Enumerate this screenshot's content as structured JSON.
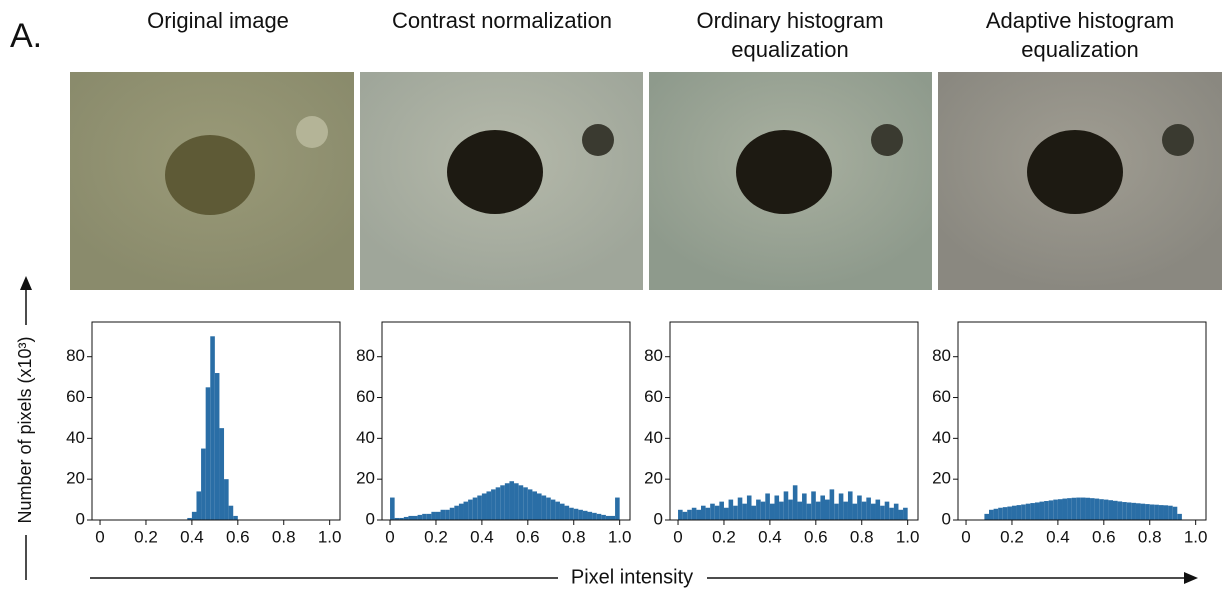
{
  "figure_label": "A.",
  "y_label": "Number of pixels (x10³)",
  "x_label": "Pixel intensity",
  "chart_data": [
    {
      "type": "histogram",
      "title": "Original image",
      "color": "#2a6ea6",
      "bins": [
        0,
        0.02,
        0.04,
        0.06,
        0.08,
        0.1,
        0.12,
        0.14,
        0.16,
        0.18,
        0.2,
        0.22,
        0.24,
        0.26,
        0.28,
        0.3,
        0.32,
        0.34,
        0.36,
        0.38,
        0.4,
        0.42,
        0.44,
        0.46,
        0.48,
        0.5,
        0.52,
        0.54,
        0.56,
        0.58,
        0.6,
        0.62,
        0.64,
        0.66,
        0.68,
        0.7,
        0.72,
        0.74,
        0.76,
        0.78,
        0.8,
        0.82,
        0.84,
        0.86,
        0.88,
        0.9,
        0.92,
        0.94,
        0.96,
        0.98,
        1
      ],
      "values": [
        0,
        0,
        0,
        0,
        0,
        0,
        0,
        0,
        0,
        0,
        0,
        0,
        0,
        0,
        0,
        0,
        0,
        0,
        0,
        1,
        4,
        14,
        35,
        65,
        90,
        72,
        45,
        20,
        7,
        2,
        0,
        0,
        0,
        0,
        0,
        0,
        0,
        0,
        0,
        0,
        0,
        0,
        0,
        0,
        0,
        0,
        0,
        0,
        0,
        0
      ],
      "xlim": [
        -0.035,
        1.045
      ],
      "xticks": [
        0,
        0.2,
        0.4,
        0.6,
        0.8,
        {
          "value": 1,
          "label": "1.0"
        }
      ],
      "ylim": [
        0,
        97
      ],
      "yticks": [
        0,
        20,
        40,
        60,
        80
      ]
    },
    {
      "type": "histogram",
      "title": "Contrast normalization",
      "color": "#2a6ea6",
      "bins": [
        0,
        0.02,
        0.04,
        0.06,
        0.08,
        0.1,
        0.12,
        0.14,
        0.16,
        0.18,
        0.2,
        0.22,
        0.24,
        0.26,
        0.28,
        0.3,
        0.32,
        0.34,
        0.36,
        0.38,
        0.4,
        0.42,
        0.44,
        0.46,
        0.48,
        0.5,
        0.52,
        0.54,
        0.56,
        0.58,
        0.6,
        0.62,
        0.64,
        0.66,
        0.68,
        0.7,
        0.72,
        0.74,
        0.76,
        0.78,
        0.8,
        0.82,
        0.84,
        0.86,
        0.88,
        0.9,
        0.92,
        0.94,
        0.96,
        0.98,
        1
      ],
      "values": [
        11,
        1,
        1,
        1.5,
        2,
        2,
        2.5,
        3,
        3,
        4,
        4,
        5,
        5,
        6,
        7,
        8,
        9,
        10,
        11,
        12,
        13,
        14,
        15,
        16,
        17,
        18,
        19,
        18,
        17,
        16,
        15,
        14,
        13,
        12,
        11,
        10,
        9,
        8,
        7,
        6,
        5.5,
        5,
        4.5,
        4,
        3.5,
        3,
        2.5,
        2,
        2,
        11
      ],
      "xlim": [
        -0.035,
        1.045
      ],
      "xticks": [
        0,
        0.2,
        0.4,
        0.6,
        0.8,
        {
          "value": 1,
          "label": "1.0"
        }
      ],
      "ylim": [
        0,
        97
      ],
      "yticks": [
        0,
        20,
        40,
        60,
        80
      ]
    },
    {
      "type": "histogram",
      "title": "Ordinary histogram equalization",
      "color": "#2a6ea6",
      "bins": [
        0,
        0.02,
        0.04,
        0.06,
        0.08,
        0.1,
        0.12,
        0.14,
        0.16,
        0.18,
        0.2,
        0.22,
        0.24,
        0.26,
        0.28,
        0.3,
        0.32,
        0.34,
        0.36,
        0.38,
        0.4,
        0.42,
        0.44,
        0.46,
        0.48,
        0.5,
        0.52,
        0.54,
        0.56,
        0.58,
        0.6,
        0.62,
        0.64,
        0.66,
        0.68,
        0.7,
        0.72,
        0.74,
        0.76,
        0.78,
        0.8,
        0.82,
        0.84,
        0.86,
        0.88,
        0.9,
        0.92,
        0.94,
        0.96,
        0.98,
        1
      ],
      "values": [
        5,
        4,
        5,
        6,
        5,
        7,
        6,
        8,
        7,
        9,
        6,
        10,
        7,
        11,
        8,
        12,
        7,
        10,
        9,
        13,
        8,
        12,
        9,
        14,
        10,
        17,
        9,
        13,
        8,
        14,
        9,
        12,
        10,
        15,
        8,
        13,
        9,
        14,
        8,
        12,
        9,
        11,
        8,
        10,
        7,
        9,
        6,
        8,
        5,
        6
      ],
      "xlim": [
        -0.035,
        1.045
      ],
      "xticks": [
        0,
        0.2,
        0.4,
        0.6,
        0.8,
        {
          "value": 1,
          "label": "1.0"
        }
      ],
      "ylim": [
        0,
        97
      ],
      "yticks": [
        0,
        20,
        40,
        60,
        80
      ]
    },
    {
      "type": "histogram",
      "title": "Adaptive histogram equalization",
      "color": "#2a6ea6",
      "bins": [
        0,
        0.02,
        0.04,
        0.06,
        0.08,
        0.1,
        0.12,
        0.14,
        0.16,
        0.18,
        0.2,
        0.22,
        0.24,
        0.26,
        0.28,
        0.3,
        0.32,
        0.34,
        0.36,
        0.38,
        0.4,
        0.42,
        0.44,
        0.46,
        0.48,
        0.5,
        0.52,
        0.54,
        0.56,
        0.58,
        0.6,
        0.62,
        0.64,
        0.66,
        0.68,
        0.7,
        0.72,
        0.74,
        0.76,
        0.78,
        0.8,
        0.82,
        0.84,
        0.86,
        0.88,
        0.9,
        0.92,
        0.94,
        0.96,
        0.98,
        1
      ],
      "values": [
        0,
        0,
        0,
        0,
        3,
        5,
        5.5,
        6,
        6.3,
        6.6,
        7,
        7.3,
        7.6,
        8,
        8.3,
        8.6,
        9,
        9.3,
        9.6,
        10,
        10.2,
        10.5,
        10.7,
        10.9,
        11,
        11,
        10.9,
        10.7,
        10.5,
        10.2,
        10,
        9.7,
        9.4,
        9.1,
        8.8,
        8.6,
        8.4,
        8.2,
        8,
        7.8,
        7.6,
        7.5,
        7.3,
        7.2,
        7,
        6.5,
        3,
        0,
        0,
        0
      ],
      "xlim": [
        -0.035,
        1.045
      ],
      "xticks": [
        0,
        0.2,
        0.4,
        0.6,
        0.8,
        {
          "value": 1,
          "label": "1.0"
        }
      ],
      "ylim": [
        0,
        97
      ],
      "yticks": [
        0,
        20,
        40,
        60,
        80
      ]
    }
  ]
}
